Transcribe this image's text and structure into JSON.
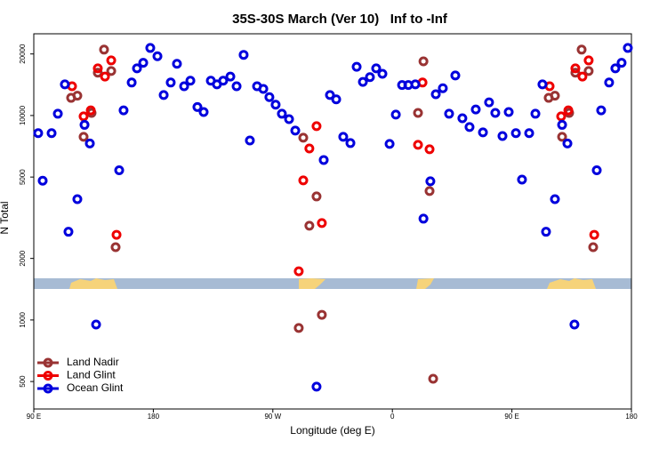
{
  "chart_data": {
    "type": "scatter",
    "title": "35S-30S March (Ver 10)   Inf to -Inf",
    "x_label": "Longitude (deg E)",
    "y_label": "N Total",
    "log_y": true,
    "xlim": [
      90,
      540
    ],
    "ylim": [
      367,
      25100
    ],
    "xticks": [
      {
        "value": 90,
        "label": "90 E"
      },
      180,
      {
        "value": 270,
        "label": "90 W"
      },
      {
        "value": 360,
        "label": "0"
      },
      {
        "value": 450,
        "label": "90 E"
      },
      {
        "value": 540,
        "label": "180"
      }
    ],
    "yticks": [
      500,
      1000,
      2000,
      5000,
      10000,
      20000
    ],
    "legend_position": "lower left",
    "series": [
      {
        "name": "Land Nadir",
        "color": "#993333",
        "x": [
          118.1,
          122.8,
          127.5,
          133.5,
          138.2,
          142.9,
          148.3,
          151.6,
          289.5,
          292.9,
          297.5,
          302.9,
          306.9,
          379.3,
          383.4,
          388.0,
          390.7,
          477.7,
          482.4,
          487.8,
          493.1,
          497.8,
          502.5,
          507.8,
          511.2
        ],
        "values": [
          12200,
          12500,
          7870,
          10300,
          16200,
          21000,
          16500,
          2270,
          914,
          7790,
          2890,
          4020,
          1060,
          10300,
          18400,
          4270,
          516,
          12200,
          12500,
          7870,
          10300,
          16200,
          21000,
          16500,
          2270
        ]
      },
      {
        "name": "Land Glint",
        "color": "#ee0000",
        "x": [
          118.8,
          127.5,
          132.9,
          138.2,
          143.6,
          148.3,
          152.3,
          289.5,
          292.9,
          297.5,
          302.9,
          306.9,
          379.3,
          382.7,
          388.0,
          478.4,
          487.1,
          492.5,
          497.8,
          503.1,
          507.8,
          512.0
        ],
        "values": [
          13900,
          9900,
          10600,
          17000,
          15500,
          18600,
          2610,
          1730,
          4815,
          6900,
          8870,
          2980,
          7190,
          14500,
          6840,
          13900,
          9900,
          10600,
          17000,
          15500,
          18600,
          2610
        ]
      },
      {
        "name": "Ocean Glint",
        "color": "#0000dd",
        "x": [
          93.3,
          96.7,
          103.4,
          108.1,
          113.4,
          116.1,
          122.8,
          128.2,
          132.2,
          136.9,
          154.3,
          157.6,
          163.7,
          167.7,
          172.4,
          177.7,
          183.1,
          187.8,
          193.1,
          197.8,
          203.2,
          207.9,
          213.2,
          217.9,
          223.3,
          227.9,
          232.6,
          238.0,
          242.7,
          248.0,
          252.7,
          258.1,
          262.8,
          267.4,
          272.1,
          276.8,
          282.2,
          286.9,
          308.3,
          313.0,
          317.7,
          323.0,
          328.4,
          333.1,
          337.8,
          343.1,
          347.8,
          352.5,
          357.9,
          362.6,
          367.3,
          372.0,
          377.3,
          383.4,
          388.6,
          392.7,
          398.0,
          402.7,
          407.4,
          412.7,
          418.1,
          422.8,
          428.2,
          432.8,
          437.5,
          442.9,
          447.6,
          453.0,
          457.6,
          463.0,
          467.7,
          473.0,
          475.7,
          482.4,
          487.8,
          491.8,
          497.1,
          513.9,
          517.2,
          523.2,
          527.9,
          532.6,
          537.3,
          302.9
        ],
        "values": [
          8200,
          4800,
          8200,
          10200,
          14200,
          2700,
          3900,
          9000,
          7300,
          950,
          5400,
          10600,
          14500,
          17000,
          18100,
          21400,
          19500,
          12600,
          14500,
          17900,
          13900,
          14800,
          11000,
          10400,
          14800,
          14200,
          14800,
          15500,
          13900,
          19800,
          7550,
          13900,
          13500,
          12300,
          11300,
          10200,
          9600,
          8440,
          6060,
          12600,
          12000,
          7870,
          7330,
          17300,
          14600,
          15400,
          17000,
          16000,
          7260,
          10100,
          14100,
          14100,
          14200,
          3130,
          4770,
          12700,
          13600,
          10200,
          15700,
          9700,
          8780,
          10700,
          8270,
          11600,
          10300,
          7940,
          10400,
          8200,
          4860,
          8200,
          10200,
          14200,
          2700,
          3900,
          9000,
          7300,
          950,
          5400,
          10600,
          14500,
          17000,
          18100,
          21400,
          472
        ]
      }
    ]
  }
}
